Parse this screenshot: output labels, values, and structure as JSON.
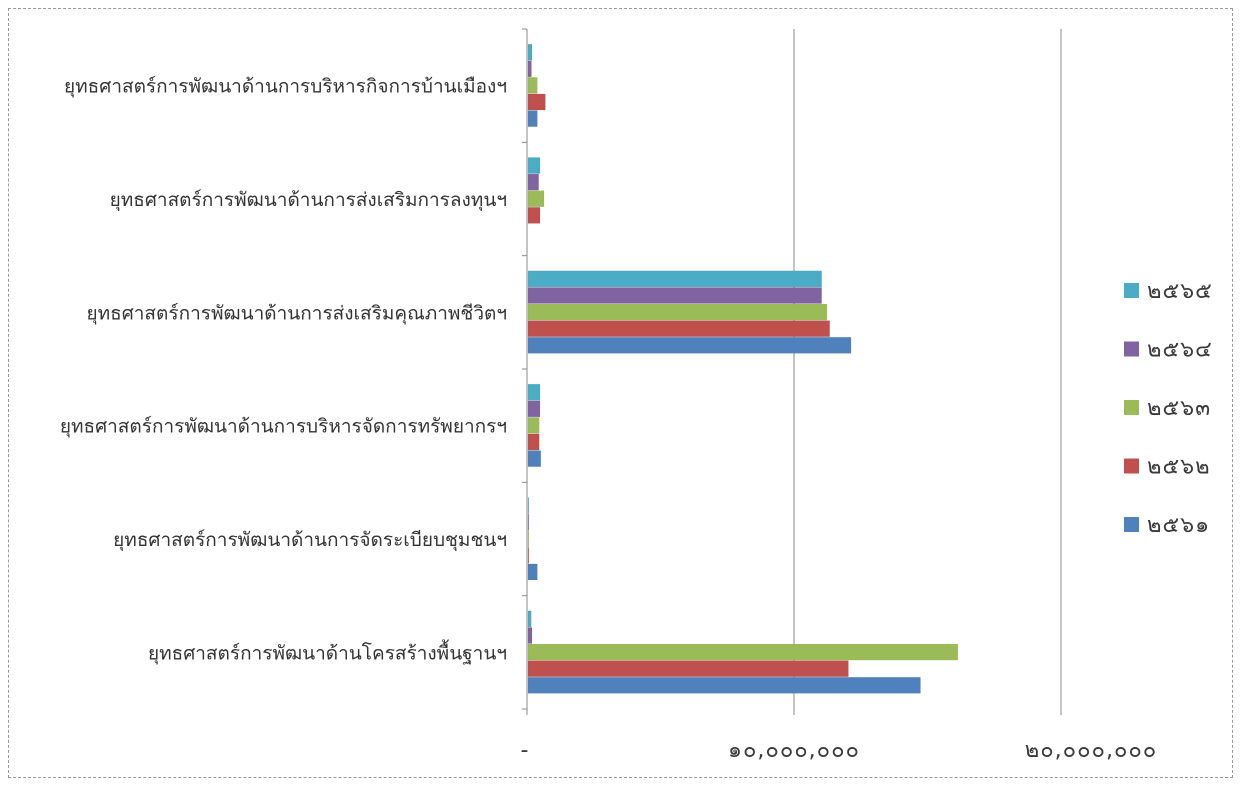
{
  "chart_data": {
    "type": "bar",
    "orientation": "horizontal",
    "title": "",
    "xlabel": "",
    "ylabel": "",
    "xlim": [
      0,
      20000000
    ],
    "grid": true,
    "legend_position": "right",
    "x_tick_labels": [
      "-",
      "๑๐,๐๐๐,๐๐๐",
      "๒๐,๐๐๐,๐๐๐"
    ],
    "categories": [
      "ยุทธศาสตร์การพัฒนาด้านการบริหารกิจการบ้านเมืองฯ",
      "ยุทธศาสตร์การพัฒนาด้านการส่งเสริมการลงทุนฯ",
      "ยุทธศาสตร์การพัฒนาด้านการส่งเสริมคุณภาพชีวิตฯ",
      "ยุทธศาสตร์การพัฒนาด้านการบริหารจัดการทรัพยากรฯ",
      "ยุทธศาสตร์การพัฒนาด้านการจัดระเบียบชุมชนฯ",
      "ยุทธศาสตร์การพัฒนาด้านโครสร้างพื้นฐานฯ"
    ],
    "series": [
      {
        "name": "๒๕๖๕",
        "color": "#4bacc6",
        "values": [
          150000,
          450000,
          11000000,
          450000,
          30000,
          120000
        ]
      },
      {
        "name": "๒๕๖๔",
        "color": "#8064a2",
        "values": [
          130000,
          400000,
          11000000,
          450000,
          30000,
          150000
        ]
      },
      {
        "name": "๒๕๖๓",
        "color": "#9bbb59",
        "values": [
          350000,
          600000,
          11200000,
          420000,
          30000,
          16100000
        ]
      },
      {
        "name": "๒๕๖๒",
        "color": "#c0504d",
        "values": [
          650000,
          450000,
          11300000,
          420000,
          30000,
          12000000
        ]
      },
      {
        "name": "๒๕๖๑",
        "color": "#4f81bd",
        "values": [
          350000,
          0,
          12100000,
          480000,
          350000,
          14700000
        ]
      }
    ]
  }
}
